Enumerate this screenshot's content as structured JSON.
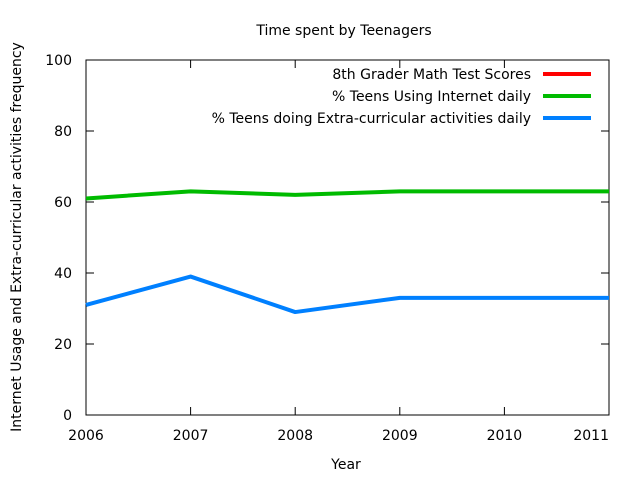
{
  "chart_data": {
    "type": "line",
    "title": "Time spent by Teenagers",
    "xlabel": "Year",
    "ylabel": "Internet Usage and Extra-curricular activities frequency",
    "xlim": [
      2006,
      2011
    ],
    "ylim": [
      0,
      100
    ],
    "x_ticks": [
      2006,
      2007,
      2008,
      2009,
      2010,
      2011
    ],
    "y_ticks": [
      0,
      20,
      40,
      60,
      80,
      100
    ],
    "grid": false,
    "legend_position": "top-right",
    "series": [
      {
        "name": "8th Grader Math Test Scores",
        "color": "#ff0000",
        "x": [],
        "values": []
      },
      {
        "name": "% Teens Using Internet daily",
        "color": "#00bb00",
        "x": [
          2006,
          2007,
          2008,
          2009,
          2010,
          2011
        ],
        "values": [
          61,
          63,
          62,
          63,
          63,
          63
        ]
      },
      {
        "name": "% Teens doing Extra-curricular activities daily",
        "color": "#0080ff",
        "x": [
          2006,
          2007,
          2008,
          2009,
          2010,
          2011
        ],
        "values": [
          31,
          39,
          29,
          33,
          33,
          33
        ]
      }
    ]
  }
}
